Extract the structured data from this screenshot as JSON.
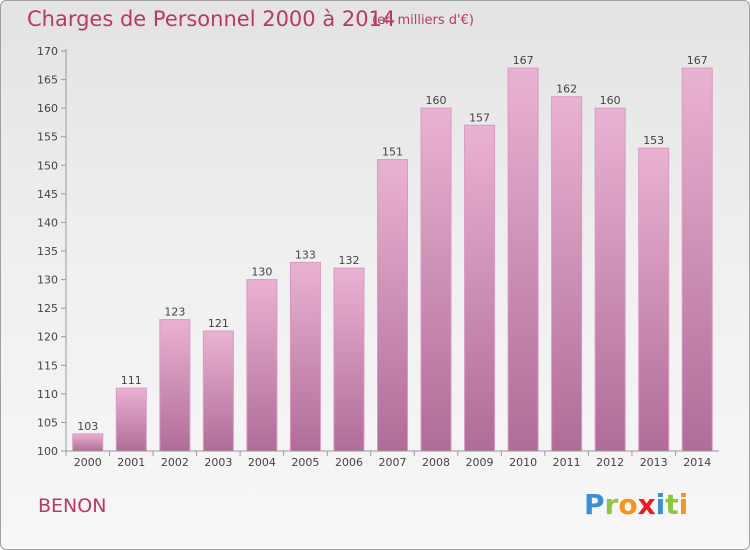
{
  "header": {
    "title": "Charges de Personnel 2000 à 2014",
    "subtitle": "(en milliers d'€)"
  },
  "footer": {
    "commune": "BENON",
    "logo_letters": [
      "P",
      "r",
      "o",
      "x",
      "i",
      "t",
      "i"
    ],
    "logo_colors": [
      "#3a8fd6",
      "#8dc63f",
      "#f7941d",
      "#ed1c24",
      "#3a8fd6",
      "#8dc63f",
      "#f7941d"
    ]
  },
  "colors": {
    "bar_top": "#eab2d2",
    "bar_bottom": "#b06c98",
    "bar_edge": "#d69bbf",
    "text": "#444444",
    "accent": "#b8386a"
  },
  "chart_data": {
    "type": "bar",
    "categories": [
      "2000",
      "2001",
      "2002",
      "2003",
      "2004",
      "2005",
      "2006",
      "2007",
      "2008",
      "2009",
      "2010",
      "2011",
      "2012",
      "2013",
      "2014"
    ],
    "values": [
      103,
      111,
      123,
      121,
      130,
      133,
      132,
      151,
      160,
      157,
      167,
      162,
      160,
      153,
      167
    ],
    "data_labels": [
      "103",
      "111",
      "123",
      "121",
      "130",
      "133",
      "132",
      "151",
      "160",
      "157",
      "167",
      "162",
      "160",
      "153",
      "167"
    ],
    "yticks": [
      100,
      105,
      110,
      115,
      120,
      125,
      130,
      135,
      140,
      145,
      150,
      155,
      160,
      165,
      170
    ],
    "ylim": [
      100,
      170
    ],
    "title": "Charges de Personnel 2000 à 2014",
    "xlabel": "",
    "ylabel": "",
    "grid": false
  }
}
